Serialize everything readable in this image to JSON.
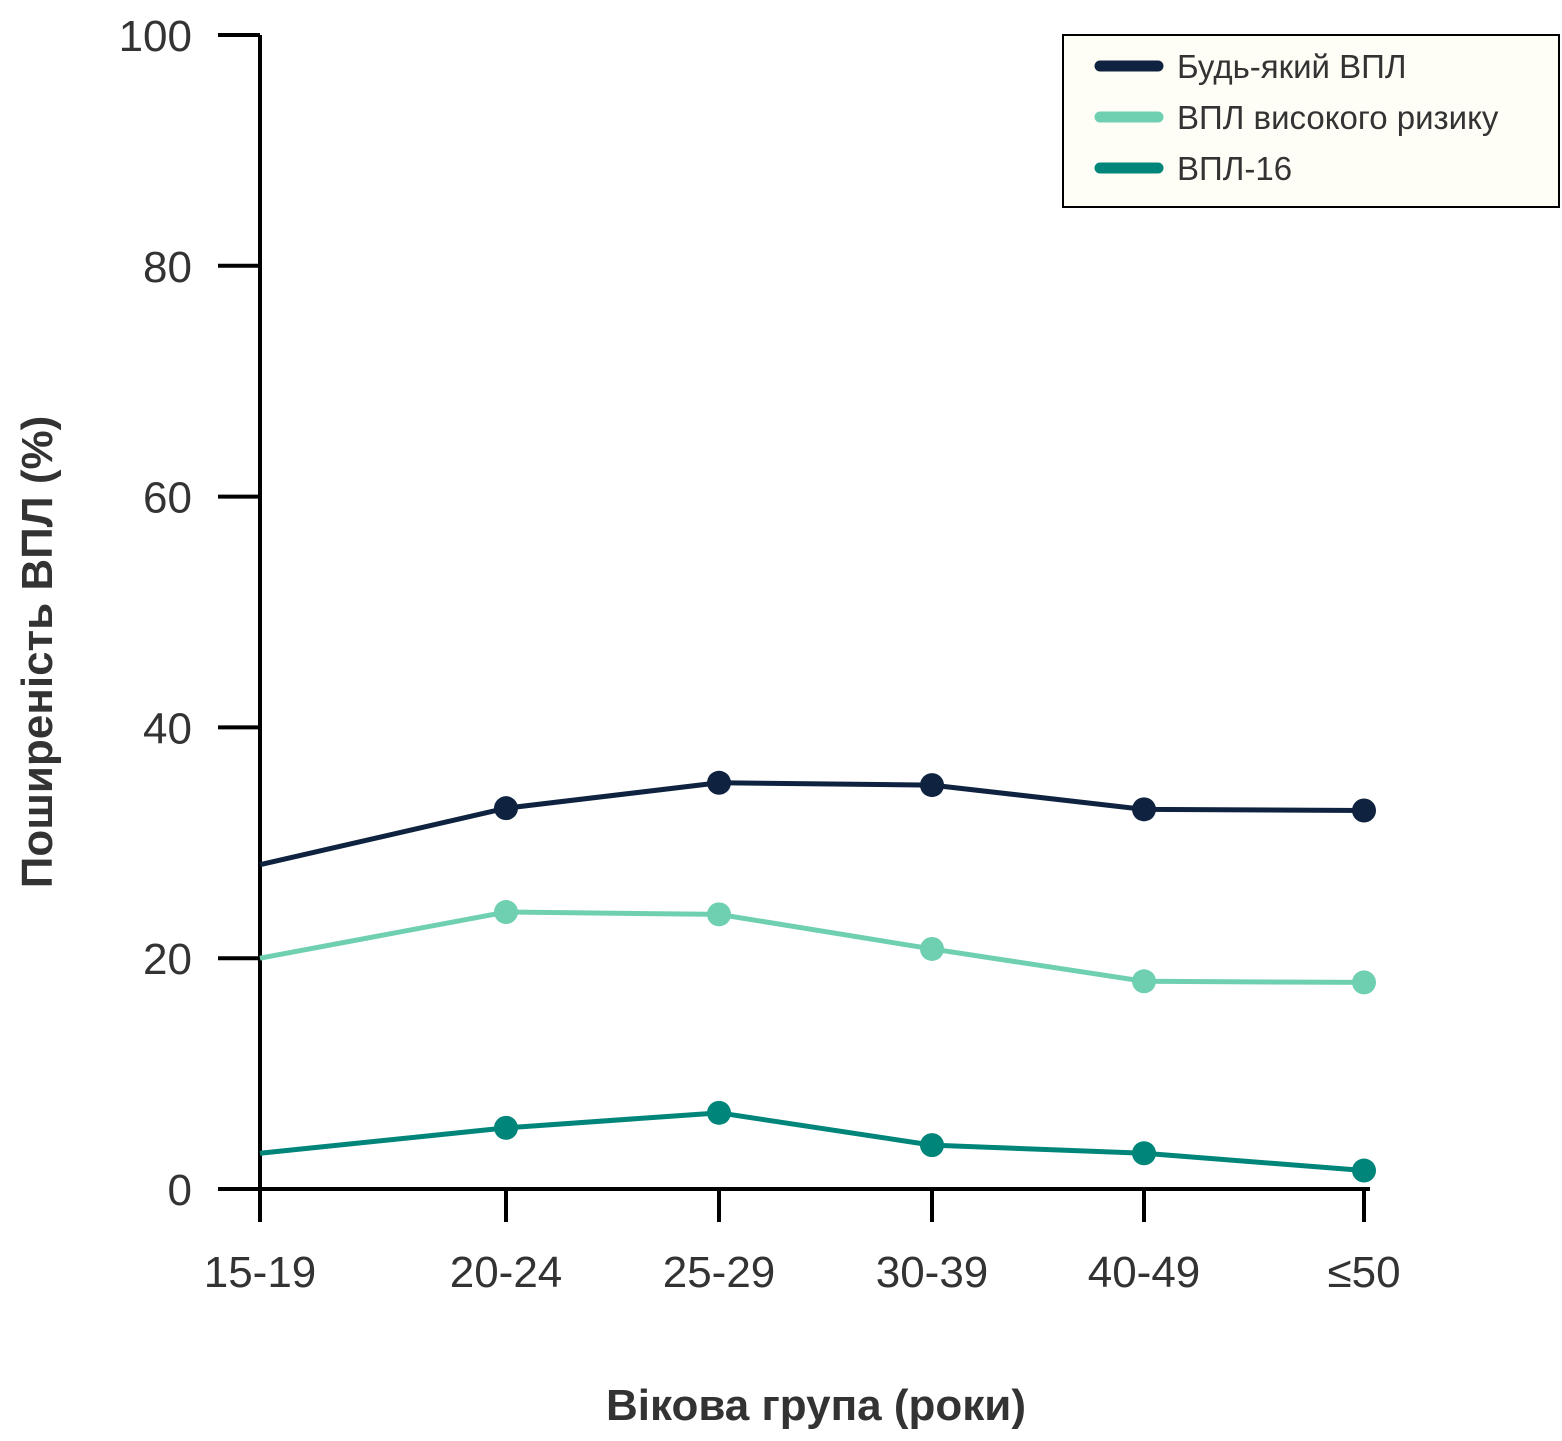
{
  "chart_data": {
    "type": "line",
    "title": "",
    "xlabel": "Вікова група (роки)",
    "ylabel": "Поширеність ВПЛ (%)",
    "categories": [
      "15-19",
      "20-24",
      "25-29",
      "30-39",
      "40-49",
      "≤50"
    ],
    "yticks": [
      "0",
      "20",
      "40",
      "60",
      "80",
      "100"
    ],
    "ylim": [
      0,
      100
    ],
    "grid": false,
    "legend_position": "top-right",
    "series": [
      {
        "name": "Будь-який ВПЛ",
        "color": "#0f2340",
        "values": [
          28.1,
          33.0,
          35.2,
          35.0,
          32.9,
          32.8
        ],
        "markers": [
          false,
          true,
          true,
          true,
          true,
          true
        ]
      },
      {
        "name": "ВПЛ високого ризику",
        "color": "#6fcfb1",
        "values": [
          20.0,
          24.0,
          23.8,
          20.8,
          18.0,
          17.9
        ],
        "markers": [
          false,
          true,
          true,
          true,
          true,
          true
        ]
      },
      {
        "name": "ВПЛ-16",
        "color": "#00857a",
        "values": [
          3.1,
          5.3,
          6.6,
          3.8,
          3.1,
          1.6
        ],
        "markers": [
          false,
          true,
          true,
          true,
          true,
          true
        ]
      }
    ]
  }
}
